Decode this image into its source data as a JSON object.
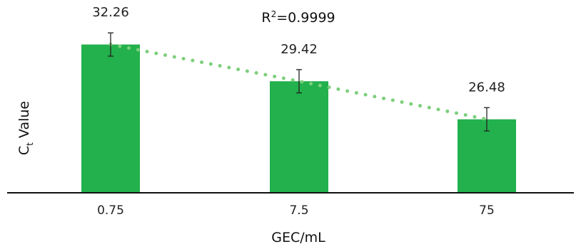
{
  "chart_data": {
    "type": "bar",
    "annotation": {
      "r_label": "R",
      "superscript": "2",
      "value_text": "=0.9999"
    },
    "xlabel": "GEC/mL",
    "ylabel": {
      "main": "C",
      "subscript": "t",
      "suffix": "Value"
    },
    "categories": [
      "0.75",
      "7.5",
      "75"
    ],
    "values": [
      32.26,
      29.42,
      26.48
    ],
    "data_labels": [
      "32.26",
      "29.42",
      "26.48"
    ],
    "error": [
      0.9,
      0.9,
      0.9
    ],
    "trendline": {
      "style": "dotted",
      "color": "#7ccf7c"
    },
    "ylim": [
      20.8,
      33.5
    ],
    "colors": {
      "bar": "#22b14c",
      "axis": "#111111",
      "errorbar": "#222222"
    },
    "grid": false,
    "legend": "none"
  }
}
